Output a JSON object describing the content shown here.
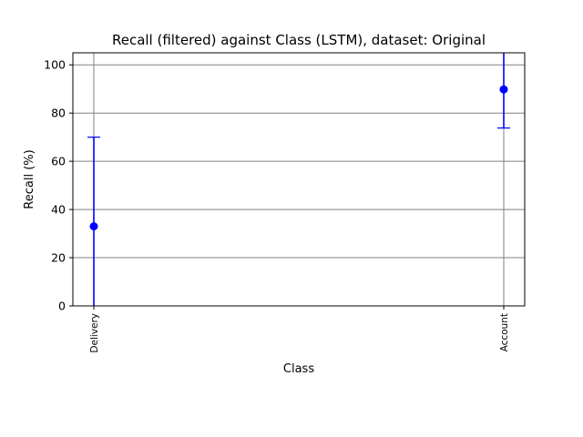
{
  "chart_data": {
    "type": "scatter",
    "title": "Recall (filtered) against Class (LSTM), dataset: Original",
    "xlabel": "Class",
    "ylabel": "Recall (%)",
    "categories": [
      "Delivery",
      "Account"
    ],
    "series": [
      {
        "values": [
          33,
          89.8
        ],
        "error_low": [
          33,
          16
        ],
        "error_high": [
          37,
          16
        ],
        "color": "#0000ff"
      }
    ],
    "ylim": [
      0,
      105
    ],
    "yticks": [
      "0",
      "20",
      "40",
      "60",
      "80",
      "100"
    ],
    "grid": true,
    "grid_color": "#808080"
  }
}
